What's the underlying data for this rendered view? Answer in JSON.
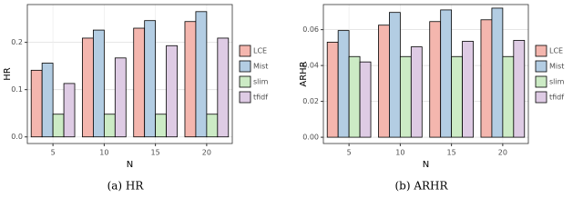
{
  "chart_data": [
    {
      "type": "bar",
      "caption": "(a) HR",
      "x_label": "N",
      "y_label": "HR",
      "categories": [
        "5",
        "10",
        "15",
        "20"
      ],
      "series": [
        {
          "name": "LCE",
          "color": "#f4b6ae",
          "values": [
            0.141,
            0.209,
            0.23,
            0.244
          ]
        },
        {
          "name": "Mist",
          "color": "#b3cde3",
          "values": [
            0.156,
            0.226,
            0.246,
            0.265
          ]
        },
        {
          "name": "slim",
          "color": "#ccebc5",
          "values": [
            0.048,
            0.048,
            0.048,
            0.048
          ]
        },
        {
          "name": "tfidf",
          "color": "#decbe4",
          "values": [
            0.113,
            0.167,
            0.193,
            0.209
          ]
        }
      ],
      "ylim": [
        -0.014,
        0.28
      ],
      "yticks": [
        {
          "value": 0,
          "label": "0.0"
        },
        0.1,
        0.2
      ],
      "grid": true,
      "legend": "right"
    },
    {
      "type": "bar",
      "caption": "(b) ARHR",
      "x_label": "N",
      "y_label": "ARHR",
      "categories": [
        "5",
        "10",
        "15",
        "20"
      ],
      "series": [
        {
          "name": "LCE",
          "color": "#f4b6ae",
          "values": [
            0.053,
            0.0625,
            0.0645,
            0.0655
          ]
        },
        {
          "name": "Mist",
          "color": "#b3cde3",
          "values": [
            0.0595,
            0.0696,
            0.071,
            0.072
          ]
        },
        {
          "name": "slim",
          "color": "#ccebc5",
          "values": [
            0.045,
            0.045,
            0.045,
            0.045
          ]
        },
        {
          "name": "tfidf",
          "color": "#decbe4",
          "values": [
            0.042,
            0.0504,
            0.0535,
            0.054
          ]
        }
      ],
      "ylim": [
        -0.0035,
        0.074
      ],
      "yticks": [
        {
          "value": 0,
          "label": "0.00"
        },
        {
          "value": 0.02,
          "label": "0.02"
        },
        {
          "value": 0.04,
          "label": "0.04"
        },
        {
          "value": 0.06,
          "label": "0.06"
        }
      ],
      "grid": true,
      "legend": "right"
    }
  ]
}
